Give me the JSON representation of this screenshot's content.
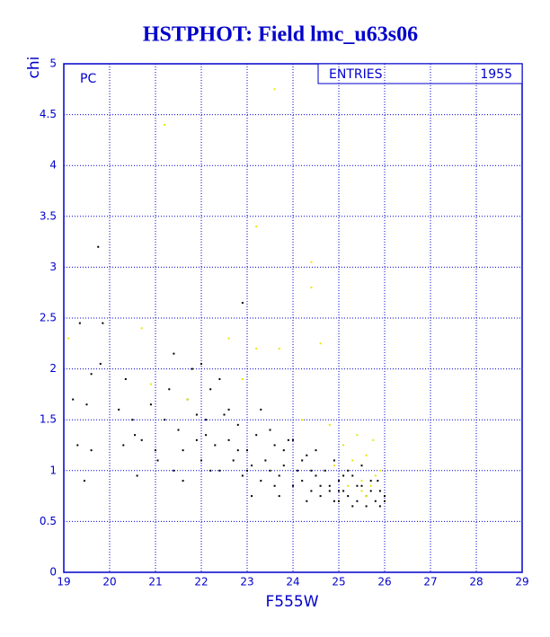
{
  "chart_data": {
    "type": "scatter",
    "title": "HSTPHOT: Field lmc_u63s06",
    "x_label": "F555W",
    "y_label": "chi",
    "annotation": "PC",
    "stats_label": "ENTRIES",
    "stats_value": "1955",
    "xlim": [
      19,
      29
    ],
    "xticks": [
      19,
      20,
      21,
      22,
      23,
      24,
      25,
      26,
      27,
      28,
      29
    ],
    "ylim": [
      0,
      5
    ],
    "yticks": [
      0,
      0.5,
      1,
      1.5,
      2,
      2.5,
      3,
      3.5,
      4,
      4.5,
      5
    ],
    "grid": true,
    "series": [
      {
        "color": "#000000",
        "x": [
          19.2,
          19.3,
          19.35,
          19.5,
          19.45,
          19.6,
          19.6,
          19.75,
          19.8,
          19.85,
          20.2,
          20.3,
          20.35,
          20.5,
          20.55,
          20.6,
          20.7,
          20.9,
          21.0,
          21.05,
          21.2,
          21.3,
          21.4,
          21.4,
          21.5,
          21.6,
          21.7,
          21.8,
          21.9,
          22.0,
          22.0,
          22.1,
          22.2,
          22.3,
          22.4,
          22.5,
          22.6,
          22.7,
          22.8,
          22.9,
          22.9,
          23.0,
          23.1,
          23.2,
          23.3,
          23.4,
          23.5,
          23.6,
          23.7,
          23.8,
          23.9,
          24.0,
          24.1,
          24.2,
          24.3,
          24.4,
          24.5,
          24.6,
          24.7,
          24.8,
          24.9,
          25.0,
          25.1,
          25.2,
          25.3,
          25.4,
          25.5,
          25.6,
          25.7,
          25.8,
          25.9,
          26.0,
          22.6,
          22.8,
          23.1,
          23.5,
          23.8,
          24.2,
          24.6,
          25.0,
          25.3,
          25.6,
          25.9,
          24.9,
          25.2,
          25.5,
          23.3,
          24.0,
          24.5,
          22.2,
          21.6,
          23.7,
          24.3,
          24.8,
          25.1,
          25.7,
          25.85,
          26.0,
          22.4,
          22.1,
          21.9,
          23.0,
          23.6,
          24.4,
          25.4,
          25.0
        ],
        "values": [
          1.7,
          1.25,
          2.45,
          1.65,
          0.9,
          1.95,
          1.2,
          3.2,
          2.05,
          2.45,
          1.6,
          1.25,
          1.9,
          1.5,
          1.35,
          0.95,
          1.3,
          1.65,
          1.2,
          1.1,
          1.5,
          1.8,
          2.15,
          1.0,
          1.4,
          1.2,
          1.7,
          2.0,
          1.3,
          2.05,
          1.1,
          1.5,
          1.8,
          1.25,
          1.0,
          1.55,
          1.3,
          1.1,
          1.45,
          2.65,
          0.95,
          1.2,
          1.05,
          1.35,
          0.9,
          1.1,
          1.0,
          1.25,
          0.95,
          1.05,
          1.3,
          0.85,
          1.0,
          0.9,
          1.15,
          0.8,
          0.95,
          0.75,
          1.0,
          0.85,
          0.7,
          0.9,
          0.8,
          0.75,
          0.95,
          0.7,
          0.85,
          0.75,
          0.9,
          0.7,
          0.8,
          0.7,
          1.6,
          1.2,
          0.75,
          1.4,
          1.2,
          1.1,
          0.85,
          0.7,
          0.65,
          0.65,
          0.65,
          1.1,
          1.0,
          1.05,
          1.6,
          1.3,
          1.2,
          1.0,
          0.9,
          0.75,
          0.7,
          0.8,
          0.95,
          0.8,
          0.9,
          0.75,
          1.9,
          1.35,
          1.55,
          1.0,
          0.85,
          1.0,
          0.85,
          0.8
        ]
      },
      {
        "color": "#e8e800",
        "x": [
          19.1,
          20.7,
          21.2,
          23.2,
          23.6,
          24.4,
          24.4,
          24.6,
          23.7,
          23.2,
          22.6,
          22.9,
          21.7,
          20.9,
          24.8,
          25.1,
          25.3,
          25.4,
          25.5,
          25.6,
          25.7,
          25.8,
          25.6,
          25.2,
          25.9,
          24.9,
          25.5,
          25.75,
          24.2
        ],
        "values": [
          2.3,
          2.4,
          4.4,
          3.4,
          4.75,
          3.05,
          2.8,
          2.25,
          2.2,
          2.2,
          2.3,
          1.9,
          1.7,
          1.85,
          1.45,
          1.25,
          1.1,
          1.35,
          0.9,
          1.15,
          0.85,
          0.95,
          0.75,
          0.85,
          1.0,
          1.05,
          0.8,
          1.3,
          1.5
        ]
      }
    ]
  }
}
